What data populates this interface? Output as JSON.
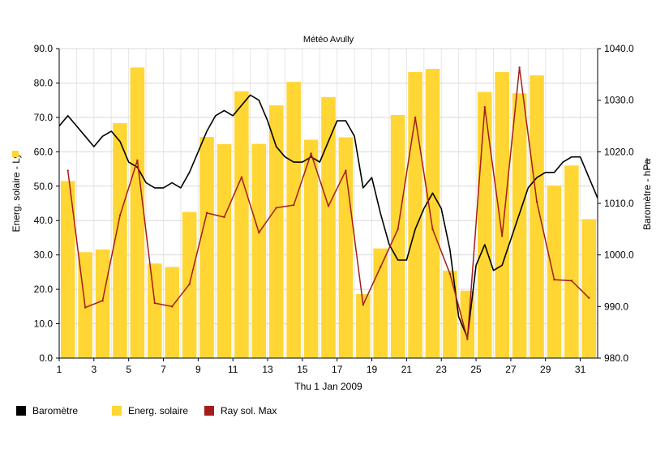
{
  "chart_data": {
    "type": "bar+line",
    "title": "Météo Avully",
    "xlabel": "Thu 1 Jan 2009",
    "ylabel_left": "Energ. solaire - Ly",
    "ylabel_right": "Baromètre - hPa",
    "ylim_left": [
      0,
      90
    ],
    "ylim_right": [
      980,
      1040
    ],
    "xlim": [
      1,
      32
    ],
    "grid": true,
    "legend_position": "bottom-left",
    "x_ticks": [
      "1",
      "3",
      "5",
      "7",
      "9",
      "11",
      "13",
      "15",
      "17",
      "19",
      "21",
      "23",
      "25",
      "27",
      "29",
      "31"
    ],
    "y_ticks_left": [
      "0.0",
      "10.0",
      "20.0",
      "30.0",
      "40.0",
      "50.0",
      "60.0",
      "70.0",
      "80.0",
      "90.0"
    ],
    "y_ticks_right": [
      "980.0",
      "990.0",
      "1000.0",
      "1010.0",
      "1020.0",
      "1030.0",
      "1040.0"
    ],
    "series": [
      {
        "name": "Baromètre",
        "type": "line",
        "axis": "right",
        "color": "#000000",
        "x": [
          1.0,
          1.5,
          2.0,
          2.5,
          3.0,
          3.5,
          4.0,
          4.5,
          5.0,
          5.5,
          6.0,
          6.5,
          7.0,
          7.5,
          8.0,
          8.5,
          9.0,
          9.5,
          10.0,
          10.5,
          11.0,
          11.5,
          12.0,
          12.5,
          13.0,
          13.5,
          14.0,
          14.5,
          15.0,
          15.5,
          16.0,
          16.5,
          17.0,
          17.5,
          18.0,
          18.5,
          19.0,
          19.5,
          20.0,
          20.5,
          21.0,
          21.5,
          22.0,
          22.5,
          23.0,
          23.5,
          24.0,
          24.5,
          25.0,
          25.5,
          26.0,
          26.5,
          27.0,
          27.5,
          28.0,
          28.5,
          29.0,
          29.5,
          30.0,
          30.5,
          31.0,
          31.5,
          32.0
        ],
        "values": [
          1025,
          1027,
          1025,
          1023,
          1021,
          1023,
          1024,
          1022,
          1018,
          1017,
          1014,
          1013,
          1013,
          1014,
          1013,
          1016,
          1020,
          1024,
          1027,
          1028,
          1027,
          1029,
          1031,
          1030,
          1026,
          1021,
          1019,
          1018,
          1018,
          1019,
          1018,
          1022,
          1026,
          1026,
          1023,
          1013,
          1015,
          1008,
          1002,
          999,
          999,
          1005,
          1009,
          1012,
          1009,
          1001,
          988,
          984,
          998,
          1002,
          997,
          998,
          1003,
          1008,
          1013,
          1015,
          1016,
          1016,
          1018,
          1019,
          1019,
          1015,
          1011
        ]
      },
      {
        "name": "Energ. solaire",
        "type": "bar",
        "axis": "left",
        "color": "#ffd633",
        "x": [
          1.5,
          2.5,
          3.5,
          4.5,
          5.5,
          6.5,
          7.5,
          8.5,
          9.5,
          10.5,
          11.5,
          12.5,
          13.5,
          14.5,
          15.5,
          16.5,
          17.5,
          18.5,
          19.5,
          20.5,
          21.5,
          22.5,
          23.5,
          24.5,
          25.5,
          26.5,
          27.5,
          28.5,
          29.5,
          30.5,
          31.5
        ],
        "values": [
          51.5,
          30.8,
          31.6,
          68.3,
          84.5,
          27.5,
          26.5,
          42.5,
          64.3,
          62.2,
          77.6,
          62.3,
          73.5,
          80.3,
          63.5,
          75.9,
          64.2,
          18.6,
          31.9,
          70.7,
          83.2,
          84.1,
          25.4,
          19.6,
          77.4,
          83.2,
          77.0,
          82.2,
          50.2,
          56.0,
          40.4
        ]
      },
      {
        "name": "Ray sol. Max",
        "type": "line",
        "axis": "left",
        "color": "#a51c1c",
        "x": [
          1.5,
          2.5,
          3.5,
          4.5,
          5.5,
          6.5,
          7.5,
          8.5,
          9.5,
          10.5,
          11.5,
          12.5,
          13.5,
          14.5,
          15.5,
          16.5,
          17.5,
          18.5,
          19.5,
          20.5,
          21.5,
          22.5,
          23.5,
          24.5,
          25.5,
          26.5,
          27.5,
          28.5,
          29.5,
          30.5,
          31.5
        ],
        "values": [
          54.5,
          14.7,
          16.7,
          41.5,
          57.5,
          16.0,
          15.0,
          21.5,
          42.2,
          41.0,
          52.6,
          36.5,
          43.7,
          44.5,
          59.5,
          44.2,
          54.5,
          15.5,
          26.5,
          37.5,
          70.0,
          37.5,
          24.5,
          5.5,
          73.0,
          35.5,
          84.5,
          45.5,
          22.8,
          22.5,
          17.5
        ]
      }
    ]
  }
}
